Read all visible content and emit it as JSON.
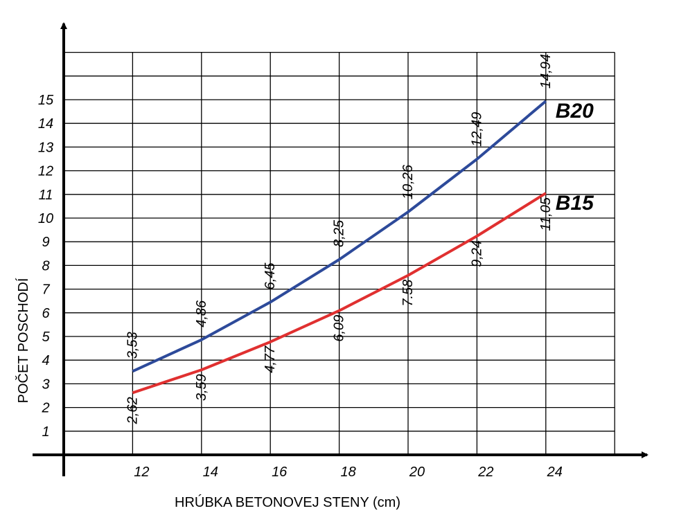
{
  "chart_data": {
    "type": "line",
    "xlabel": "HRÚBKA BETONOVEJ STENY (cm)",
    "ylabel": "POČET POSCHODÍ",
    "x": [
      12,
      14,
      16,
      18,
      20,
      22,
      24
    ],
    "x_ticks": [
      "12",
      "14",
      "16",
      "18",
      "20",
      "22",
      "24"
    ],
    "y_ticks": [
      "1",
      "2",
      "3",
      "4",
      "5",
      "6",
      "7",
      "8",
      "9",
      "10",
      "11",
      "12",
      "13",
      "14",
      "15"
    ],
    "xlim": [
      10,
      26
    ],
    "ylim": [
      0,
      17
    ],
    "grid": true,
    "series": [
      {
        "name": "B20",
        "color": "#2d4a9a",
        "values": [
          3.53,
          4.86,
          6.45,
          8.25,
          10.26,
          12.49,
          14.94
        ],
        "labels": [
          "3,53",
          "4,86",
          "6,45",
          "8,25",
          "10,26",
          "12,49",
          "14,94"
        ]
      },
      {
        "name": "B15",
        "color": "#e03030",
        "values": [
          2.62,
          3.59,
          4.77,
          6.09,
          7.58,
          9.24,
          11.05
        ],
        "labels": [
          "2,62",
          "3,59",
          "4,77",
          "6,09",
          "7.58",
          "9,24",
          "11,05"
        ]
      }
    ]
  }
}
